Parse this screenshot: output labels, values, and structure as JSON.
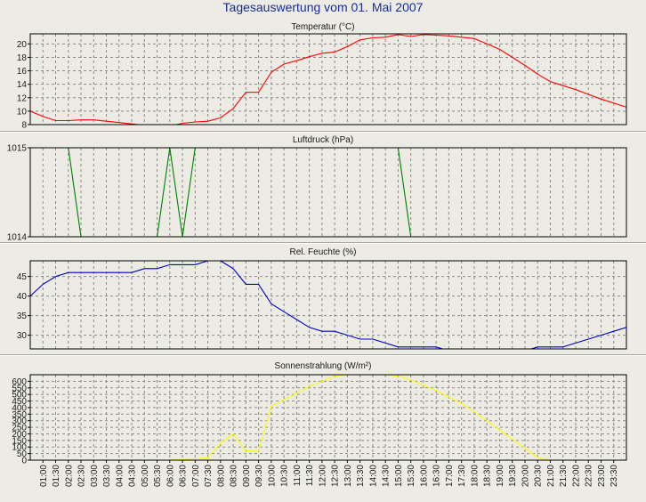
{
  "page": {
    "title": "Tagesauswertung vom 01. Mai 2007"
  },
  "chart_data": [
    {
      "type": "line",
      "title": "Temperatur (°C)",
      "color": "#ff0000",
      "ylim": [
        8,
        21.5
      ],
      "yticks": [
        8,
        10,
        12,
        14,
        16,
        18,
        20
      ],
      "x": [
        0,
        0.5,
        1,
        1.5,
        2,
        2.5,
        3,
        3.5,
        4,
        4.5,
        5,
        5.5,
        6,
        6.5,
        7,
        7.5,
        8,
        8.5,
        9,
        9.5,
        10,
        10.5,
        11,
        11.5,
        12,
        12.5,
        13,
        13.5,
        14,
        14.5,
        15,
        15.5,
        16,
        16.5,
        17,
        17.5,
        18,
        18.5,
        19,
        19.5,
        20,
        20.5,
        21,
        21.5,
        22,
        22.5,
        23,
        23.5
      ],
      "values": [
        10,
        9.2,
        8.6,
        8.6,
        8.7,
        8.7,
        8.5,
        8.3,
        8.1,
        7.9,
        7.8,
        7.8,
        8.2,
        8.4,
        8.5,
        9,
        10.4,
        12.8,
        12.8,
        15.8,
        17,
        17.5,
        18.1,
        18.6,
        18.8,
        19.6,
        20.6,
        20.9,
        21,
        21.4,
        21.1,
        21.4,
        21.3,
        21.2,
        21,
        20.8,
        20,
        19.2,
        18,
        16.8,
        15.5,
        14.4,
        13.8,
        13.2,
        12.5,
        11.8,
        11.2,
        10.6
      ]
    },
    {
      "type": "line",
      "title": "Luftdruck (hPa)",
      "color": "#008000",
      "ylim": [
        1014,
        1015
      ],
      "yticks": [
        1014,
        1015
      ],
      "x": [
        0,
        0.5,
        1,
        1.5,
        2,
        2.5,
        3,
        3.5,
        4,
        4.5,
        5,
        5.5,
        6,
        6.5,
        7,
        7.5,
        8,
        8.5,
        9,
        9.5,
        10,
        10.5,
        11,
        11.5,
        12,
        12.5,
        13,
        13.5,
        14,
        14.5,
        15,
        15.5,
        16,
        16.5,
        17,
        17.5,
        18,
        18.5,
        19,
        19.5,
        20,
        20.5,
        21,
        21.5,
        22,
        22.5,
        23,
        23.5
      ],
      "values": [
        1015,
        1015,
        1015,
        1015,
        1014,
        1014,
        1014,
        1014,
        1014,
        1014,
        1014,
        1015,
        1014,
        1015,
        1015,
        1015,
        1015,
        1015,
        1015,
        1015,
        1015,
        1015,
        1015,
        1015,
        1015,
        1015,
        1015,
        1015,
        1015,
        1015,
        1014,
        1014,
        1014,
        1014,
        1014,
        1014,
        1014,
        1014,
        1014,
        1014,
        1014,
        1014,
        1014,
        1014,
        1014,
        1014,
        1014,
        1014
      ]
    },
    {
      "type": "line",
      "title": "Rel. Feuchte (%)",
      "color": "#0000cc",
      "ylim": [
        26.5,
        49
      ],
      "yticks": [
        30,
        35,
        40,
        45
      ],
      "x": [
        0,
        0.5,
        1,
        1.5,
        2,
        2.5,
        3,
        3.5,
        4,
        4.5,
        5,
        5.5,
        6,
        6.5,
        7,
        7.5,
        8,
        8.5,
        9,
        9.5,
        10,
        10.5,
        11,
        11.5,
        12,
        12.5,
        13,
        13.5,
        14,
        14.5,
        15,
        15.5,
        16,
        16.5,
        17,
        17.5,
        18,
        18.5,
        19,
        19.5,
        20,
        20.5,
        21,
        21.5,
        22,
        22.5,
        23,
        23.5
      ],
      "values": [
        40,
        43,
        45,
        46,
        46,
        46,
        46,
        46,
        46,
        47,
        47,
        48,
        48,
        48,
        49,
        49,
        47,
        43,
        43,
        38,
        36,
        34,
        32,
        31,
        31,
        30,
        29,
        29,
        28,
        27,
        27,
        27,
        27,
        26,
        26,
        26,
        26,
        26,
        26,
        26,
        27,
        27,
        27,
        28,
        29,
        30,
        31,
        32
      ]
    },
    {
      "type": "line",
      "title": "Sonnenstrahlung (W/m²)",
      "color": "#ffff00",
      "ylim": [
        0,
        650
      ],
      "yticks": [
        0,
        50,
        100,
        150,
        200,
        250,
        300,
        350,
        400,
        450,
        500,
        550,
        600
      ],
      "x": [
        0,
        0.5,
        1,
        1.5,
        2,
        2.5,
        3,
        3.5,
        4,
        4.5,
        5,
        5.5,
        6,
        6.5,
        7,
        7.5,
        8,
        8.5,
        9,
        9.5,
        10,
        10.5,
        11,
        11.5,
        12,
        12.5,
        13,
        13.5,
        14,
        14.5,
        15,
        15.5,
        16,
        16.5,
        17,
        17.5,
        18,
        18.5,
        19,
        19.5,
        20,
        20.5,
        21,
        21.5,
        22,
        22.5,
        23,
        23.5
      ],
      "values": [
        0,
        0,
        0,
        0,
        0,
        0,
        0,
        0,
        0,
        0,
        0,
        0,
        5,
        10,
        20,
        130,
        200,
        70,
        70,
        410,
        460,
        510,
        560,
        600,
        640,
        650,
        650,
        650,
        650,
        640,
        610,
        570,
        530,
        480,
        430,
        370,
        300,
        230,
        160,
        90,
        20,
        0,
        0,
        0,
        0,
        0,
        0,
        0
      ]
    }
  ],
  "x_axis": {
    "tick_labels": [
      "01:00",
      "01:30",
      "02:00",
      "02:30",
      "03:00",
      "03:30",
      "04:00",
      "04:30",
      "05:00",
      "05:30",
      "06:00",
      "06:30",
      "07:00",
      "07:30",
      "08:00",
      "08:30",
      "09:00",
      "09:30",
      "10:00",
      "10:30",
      "11:00",
      "11:30",
      "12:00",
      "12:30",
      "13:00",
      "13:30",
      "14:00",
      "14:30",
      "15:00",
      "15:30",
      "16:00",
      "16:30",
      "17:00",
      "17:30",
      "18:00",
      "18:30",
      "19:00",
      "19:30",
      "20:00",
      "20:30",
      "21:00",
      "21:30",
      "22:00",
      "22:30",
      "23:00",
      "23:30"
    ]
  }
}
